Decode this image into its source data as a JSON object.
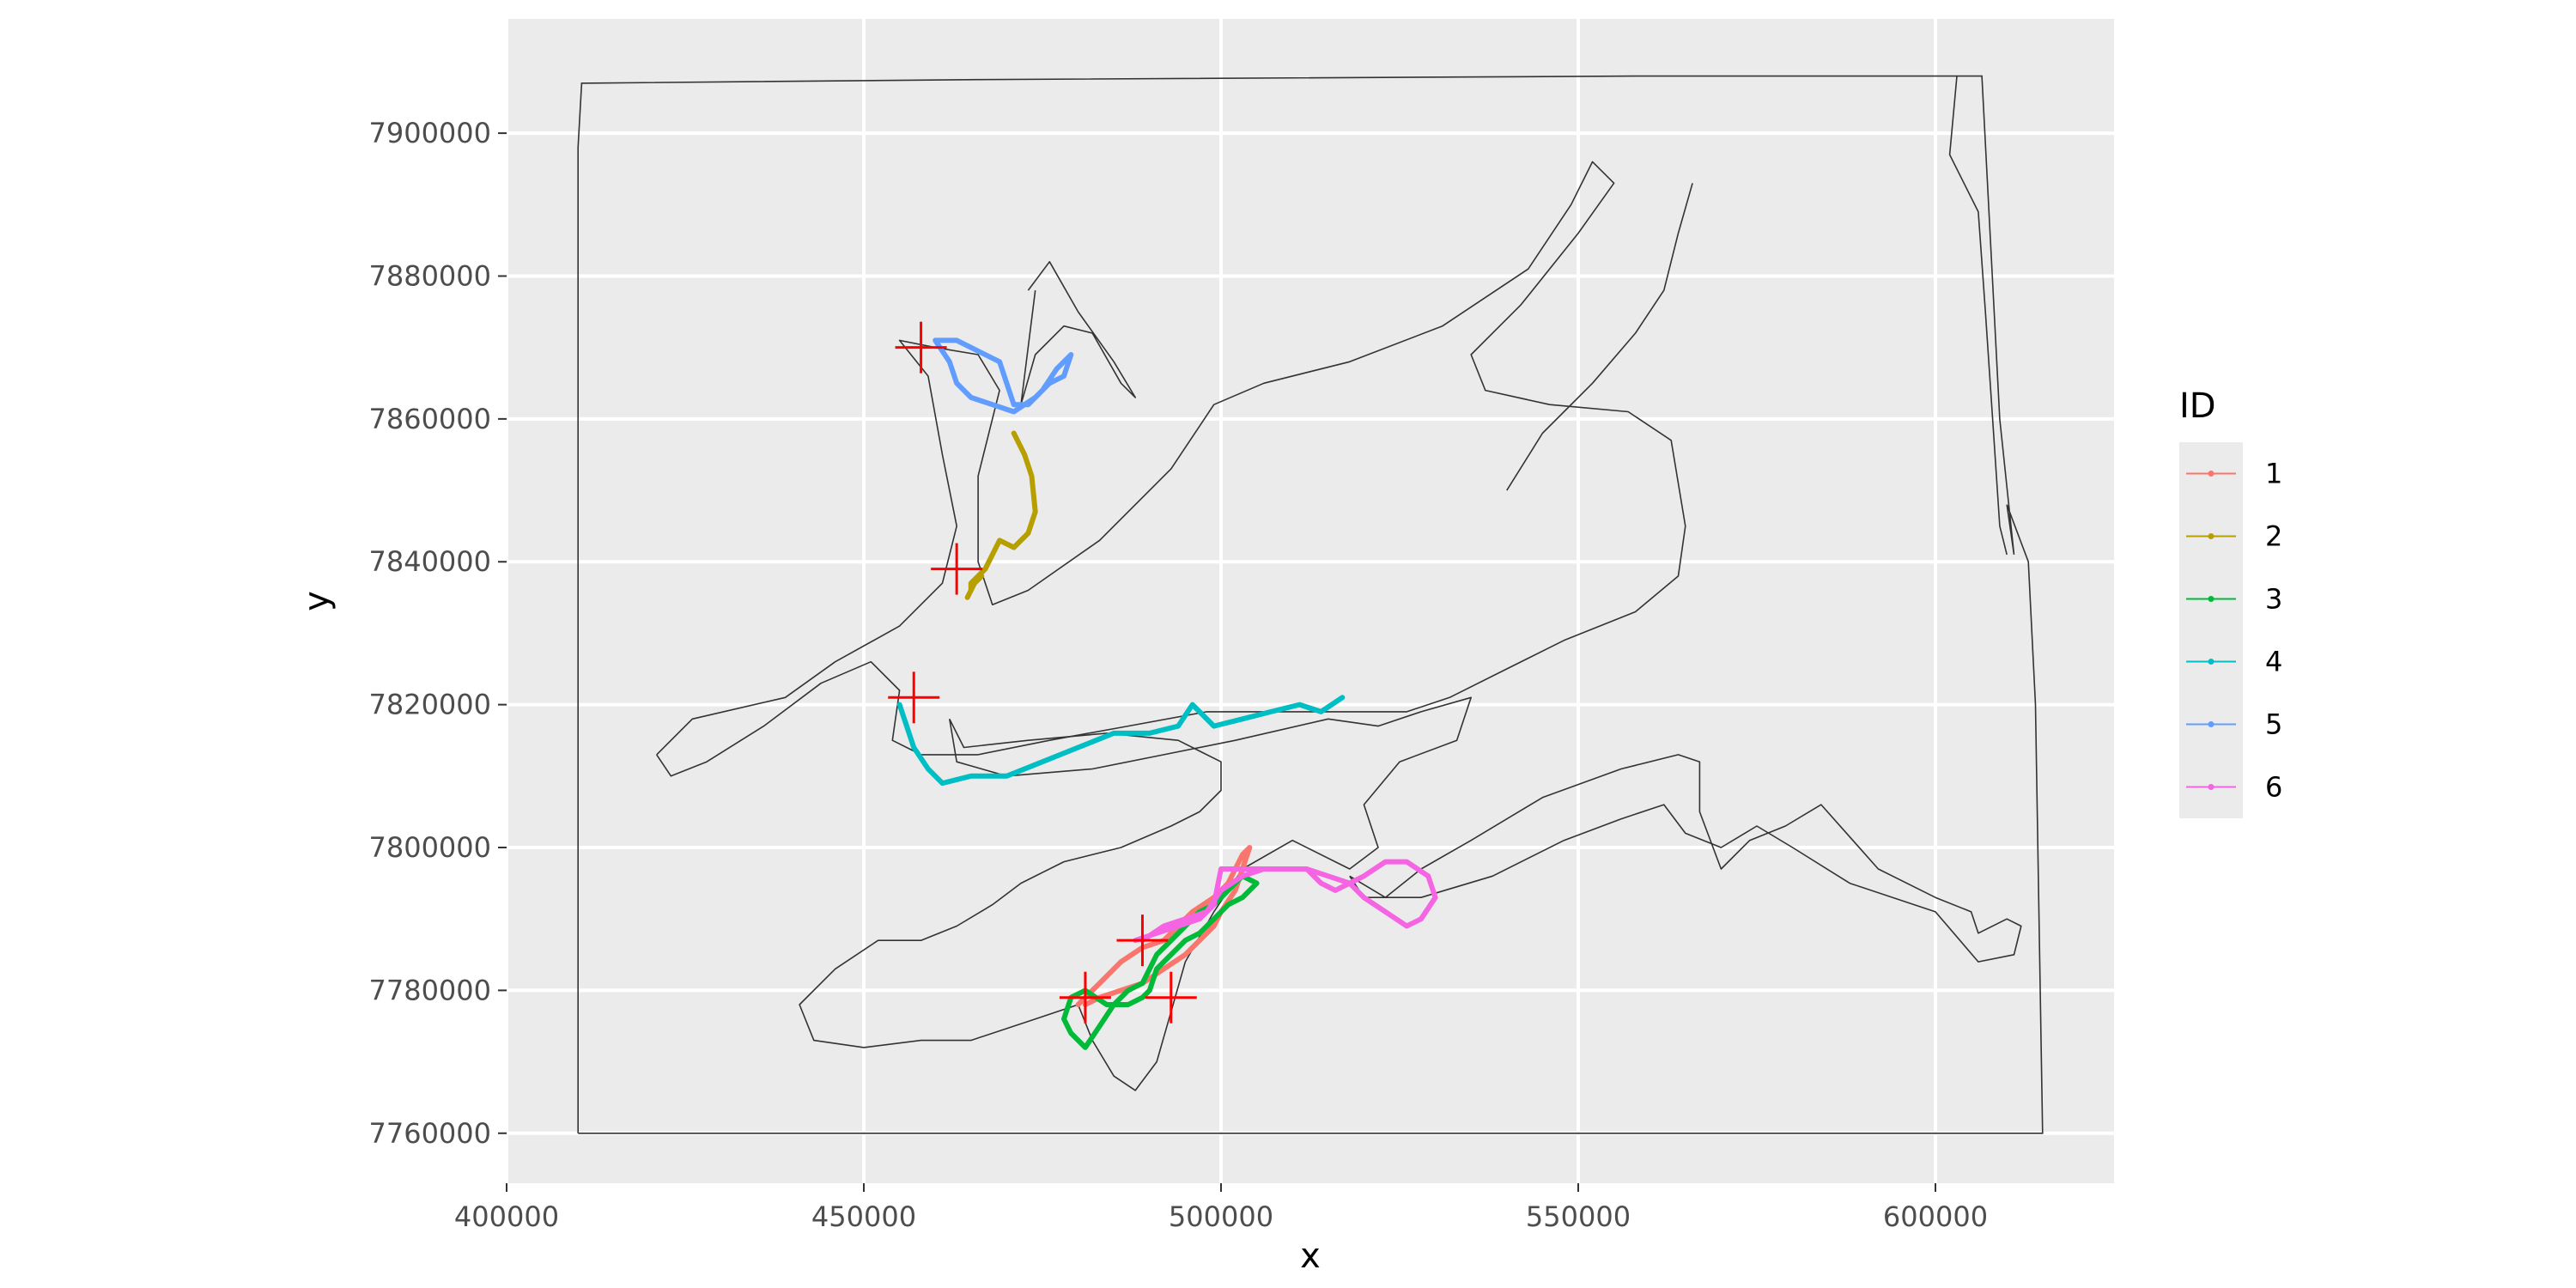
{
  "chart_data": {
    "type": "line",
    "xlabel": "x",
    "ylabel": "y",
    "xlim": [
      400000,
      625000
    ],
    "ylim": [
      7753000,
      7916000
    ],
    "x_ticks": [
      400000,
      450000,
      500000,
      550000,
      600000
    ],
    "x_tick_labels": [
      "400000",
      "450000",
      "500000",
      "550000",
      "600000"
    ],
    "y_ticks": [
      7760000,
      7780000,
      7800000,
      7820000,
      7840000,
      7860000,
      7880000,
      7900000
    ],
    "y_tick_labels": [
      "7760000",
      "7780000",
      "7800000",
      "7820000",
      "7840000",
      "7860000",
      "7880000",
      "7900000"
    ],
    "grid": true,
    "legend": {
      "title": "ID",
      "position": "right"
    },
    "colors": {
      "panel": "#ebebeb",
      "grid": "#ffffff",
      "outline": "#333333",
      "marker": "#ff0000"
    },
    "boundary": [
      [
        410000,
        7760000
      ],
      [
        410000,
        7898000
      ],
      [
        410500,
        7907000
      ],
      [
        466000,
        7907500
      ],
      [
        558000,
        7908000
      ],
      [
        606500,
        7908000
      ],
      [
        609000,
        7860000
      ],
      [
        611000,
        7841000
      ],
      [
        610000,
        7848000
      ],
      [
        613000,
        7840000
      ],
      [
        614000,
        7820000
      ],
      [
        615000,
        7760000
      ],
      [
        410000,
        7760000
      ]
    ],
    "coastlines": [
      [
        [
          421000,
          7813000
        ],
        [
          426000,
          7818000
        ],
        [
          439000,
          7821000
        ],
        [
          446000,
          7826000
        ],
        [
          455000,
          7831000
        ],
        [
          461000,
          7837000
        ],
        [
          463000,
          7845000
        ],
        [
          461000,
          7855000
        ],
        [
          459000,
          7866000
        ],
        [
          455000,
          7871000
        ],
        [
          460000,
          7870000
        ],
        [
          466000,
          7869000
        ],
        [
          469000,
          7864000
        ],
        [
          466000,
          7852000
        ],
        [
          466000,
          7840000
        ],
        [
          468000,
          7834000
        ],
        [
          473000,
          7836000
        ],
        [
          483000,
          7843000
        ],
        [
          493000,
          7853000
        ],
        [
          499000,
          7862000
        ],
        [
          506000,
          7865000
        ],
        [
          518000,
          7868000
        ],
        [
          531000,
          7873000
        ],
        [
          543000,
          7881000
        ],
        [
          549000,
          7890000
        ],
        [
          552000,
          7896000
        ],
        [
          555000,
          7893000
        ],
        [
          550000,
          7886000
        ],
        [
          542000,
          7876000
        ],
        [
          535000,
          7869000
        ],
        [
          537000,
          7864000
        ],
        [
          546000,
          7862000
        ],
        [
          557000,
          7861000
        ],
        [
          563000,
          7857000
        ],
        [
          565000,
          7845000
        ],
        [
          564000,
          7838000
        ],
        [
          558000,
          7833000
        ],
        [
          548000,
          7829000
        ],
        [
          540000,
          7825000
        ],
        [
          532000,
          7821000
        ],
        [
          526000,
          7819000
        ],
        [
          518000,
          7819000
        ],
        [
          508000,
          7819000
        ],
        [
          498000,
          7819000
        ],
        [
          487000,
          7817000
        ],
        [
          476000,
          7815000
        ],
        [
          466000,
          7813000
        ],
        [
          458000,
          7813000
        ],
        [
          454000,
          7815000
        ],
        [
          455000,
          7822000
        ],
        [
          451000,
          7826000
        ],
        [
          444000,
          7823000
        ],
        [
          436000,
          7817000
        ],
        [
          428000,
          7812000
        ],
        [
          423000,
          7810000
        ],
        [
          421000,
          7813000
        ]
      ],
      [
        [
          473000,
          7878000
        ],
        [
          476000,
          7882000
        ],
        [
          480000,
          7875000
        ],
        [
          485000,
          7868000
        ],
        [
          488000,
          7863000
        ],
        [
          486000,
          7865000
        ],
        [
          482000,
          7872000
        ],
        [
          478000,
          7873000
        ],
        [
          474000,
          7869000
        ],
        [
          472000,
          7862000
        ],
        [
          474000,
          7878000
        ]
      ],
      [
        [
          462000,
          7818000
        ],
        [
          463000,
          7812000
        ],
        [
          470000,
          7810000
        ],
        [
          482000,
          7811000
        ],
        [
          492000,
          7813000
        ],
        [
          502000,
          7815000
        ],
        [
          515000,
          7818000
        ],
        [
          522000,
          7817000
        ],
        [
          528000,
          7819000
        ],
        [
          535000,
          7821000
        ],
        [
          533000,
          7815000
        ],
        [
          525000,
          7812000
        ],
        [
          520000,
          7806000
        ],
        [
          522000,
          7800000
        ],
        [
          518000,
          7797000
        ],
        [
          510000,
          7801000
        ],
        [
          503000,
          7797000
        ],
        [
          499000,
          7791000
        ],
        [
          495000,
          7784000
        ],
        [
          493000,
          7777000
        ],
        [
          491000,
          7770000
        ],
        [
          488000,
          7766000
        ],
        [
          485000,
          7768000
        ],
        [
          482000,
          7773000
        ],
        [
          480000,
          7778000
        ],
        [
          474000,
          7776000
        ],
        [
          465000,
          7773000
        ],
        [
          458000,
          7773000
        ],
        [
          450000,
          7772000
        ],
        [
          443000,
          7773000
        ],
        [
          441000,
          7778000
        ],
        [
          446000,
          7783000
        ],
        [
          452000,
          7787000
        ],
        [
          458000,
          7787000
        ],
        [
          463000,
          7789000
        ],
        [
          468000,
          7792000
        ],
        [
          472000,
          7795000
        ],
        [
          478000,
          7798000
        ],
        [
          486000,
          7800000
        ],
        [
          493000,
          7803000
        ],
        [
          497000,
          7805000
        ],
        [
          500000,
          7808000
        ],
        [
          500000,
          7812000
        ],
        [
          494000,
          7815000
        ],
        [
          484000,
          7816000
        ],
        [
          473000,
          7815000
        ],
        [
          464000,
          7814000
        ],
        [
          462000,
          7818000
        ]
      ],
      [
        [
          518000,
          7796000
        ],
        [
          523000,
          7793000
        ],
        [
          528000,
          7797000
        ],
        [
          535000,
          7801000
        ],
        [
          545000,
          7807000
        ],
        [
          556000,
          7811000
        ],
        [
          564000,
          7813000
        ],
        [
          567000,
          7812000
        ],
        [
          567000,
          7805000
        ],
        [
          570000,
          7797000
        ],
        [
          574000,
          7801000
        ],
        [
          579000,
          7803000
        ],
        [
          584000,
          7806000
        ],
        [
          592000,
          7797000
        ],
        [
          600000,
          7793000
        ],
        [
          605000,
          7791000
        ],
        [
          606000,
          7788000
        ],
        [
          610000,
          7790000
        ],
        [
          612000,
          7789000
        ],
        [
          611000,
          7785000
        ],
        [
          606000,
          7784000
        ],
        [
          600000,
          7791000
        ],
        [
          588000,
          7795000
        ],
        [
          580000,
          7800000
        ],
        [
          575000,
          7803000
        ],
        [
          570000,
          7800000
        ],
        [
          565000,
          7802000
        ],
        [
          562000,
          7806000
        ],
        [
          556000,
          7804000
        ],
        [
          548000,
          7801000
        ],
        [
          538000,
          7796000
        ],
        [
          528000,
          7793000
        ],
        [
          520000,
          7793000
        ],
        [
          518000,
          7796000
        ]
      ],
      [
        [
          603000,
          7908000
        ],
        [
          602000,
          7897000
        ],
        [
          606000,
          7889000
        ],
        [
          607000,
          7875000
        ],
        [
          608000,
          7860000
        ],
        [
          609000,
          7845000
        ],
        [
          610000,
          7841000
        ]
      ],
      [
        [
          540000,
          7850000
        ],
        [
          545000,
          7858000
        ],
        [
          552000,
          7865000
        ],
        [
          558000,
          7872000
        ],
        [
          562000,
          7878000
        ],
        [
          564000,
          7886000
        ],
        [
          566000,
          7893000
        ]
      ]
    ],
    "markers": [
      [
        458000,
        7870000
      ],
      [
        463000,
        7839000
      ],
      [
        457000,
        7821000
      ],
      [
        489000,
        7787000
      ],
      [
        481000,
        7779000
      ],
      [
        493000,
        7779000
      ]
    ],
    "series": [
      {
        "name": "1",
        "color": "#F8766D",
        "x": [
          480000,
          483000,
          486000,
          489000,
          492000,
          494000,
          496000,
          499000,
          501000,
          503000,
          504000,
          503000,
          502000,
          500000,
          499000,
          497000,
          495000,
          492000,
          489000,
          486000,
          483000,
          481000
        ],
        "y": [
          7778000,
          7781000,
          7784000,
          7786000,
          7787000,
          7789000,
          7791000,
          7793000,
          7795000,
          7799000,
          7800000,
          7797000,
          7794000,
          7791000,
          7789000,
          7787000,
          7785000,
          7783000,
          7781000,
          7780000,
          7779000,
          7778000
        ]
      },
      {
        "name": "2",
        "color": "#B79F00",
        "x": [
          471000,
          472500,
          473500,
          474000,
          473000,
          471000,
          469000,
          468000,
          467000,
          466000,
          465000,
          465000,
          464500,
          465500,
          466500
        ],
        "y": [
          7858000,
          7855000,
          7852000,
          7847000,
          7844000,
          7842000,
          7843000,
          7841000,
          7839000,
          7838000,
          7837000,
          7836000,
          7835000,
          7837000,
          7838000
        ]
      },
      {
        "name": "3",
        "color": "#00BA38",
        "x": [
          478000,
          479000,
          481000,
          483000,
          485000,
          487000,
          489000,
          490000,
          491000,
          493000,
          495000,
          497000,
          499000,
          501000,
          503000,
          505000,
          503000,
          501000,
          499000,
          497000,
          495000,
          493000,
          491000,
          490000,
          489000,
          487000,
          484000,
          481000,
          479000,
          478000
        ],
        "y": [
          7776000,
          7774000,
          7772000,
          7775000,
          7778000,
          7780000,
          7781000,
          7783000,
          7785000,
          7787000,
          7789000,
          7791000,
          7792000,
          7794000,
          7796000,
          7795000,
          7793000,
          7792000,
          7790000,
          7788000,
          7787000,
          7785000,
          7783000,
          7780000,
          7779000,
          7778000,
          7778000,
          7780000,
          7779000,
          7776000
        ]
      },
      {
        "name": "4",
        "color": "#00BFC4",
        "x": [
          455000,
          457000,
          459000,
          461000,
          465000,
          470000,
          475000,
          480000,
          485000,
          490000,
          494000,
          496000,
          499000,
          503000,
          507000,
          511000,
          514000,
          517000
        ],
        "y": [
          7820000,
          7814000,
          7811000,
          7809000,
          7810000,
          7810000,
          7812000,
          7814000,
          7816000,
          7816000,
          7817000,
          7820000,
          7817000,
          7818000,
          7819000,
          7820000,
          7819000,
          7821000
        ]
      },
      {
        "name": "5",
        "color": "#619CFF",
        "x": [
          460000,
          462000,
          463000,
          465000,
          468000,
          471000,
          474000,
          476000,
          478000,
          479000,
          477000,
          475000,
          473000,
          471000,
          470000,
          469000,
          467000,
          465000,
          463000,
          461000,
          460000
        ],
        "y": [
          7871000,
          7868000,
          7865000,
          7863000,
          7862000,
          7861000,
          7863000,
          7865000,
          7866000,
          7869000,
          7867000,
          7864000,
          7862000,
          7862000,
          7865000,
          7868000,
          7869000,
          7870000,
          7871000,
          7871000,
          7871000
        ]
      },
      {
        "name": "6",
        "color": "#F564E3",
        "x": [
          488000,
          491000,
          494000,
          497000,
          499000,
          500000,
          503000,
          506000,
          509000,
          512000,
          514000,
          516000,
          518000,
          520000,
          523000,
          526000,
          529000,
          530000,
          528000,
          526000,
          523000,
          520000,
          518000,
          515000,
          512000,
          509000,
          506000,
          503000,
          500000,
          498000,
          495000,
          492000,
          489000
        ],
        "y": [
          7787000,
          7788000,
          7789000,
          7790000,
          7792000,
          7797000,
          7797000,
          7797000,
          7797000,
          7797000,
          7795000,
          7794000,
          7795000,
          7796000,
          7798000,
          7798000,
          7796000,
          7793000,
          7790000,
          7789000,
          7791000,
          7793000,
          7795000,
          7796000,
          7797000,
          7797000,
          7797000,
          7796000,
          7794000,
          7791000,
          7790000,
          7789000,
          7787000
        ]
      }
    ]
  }
}
